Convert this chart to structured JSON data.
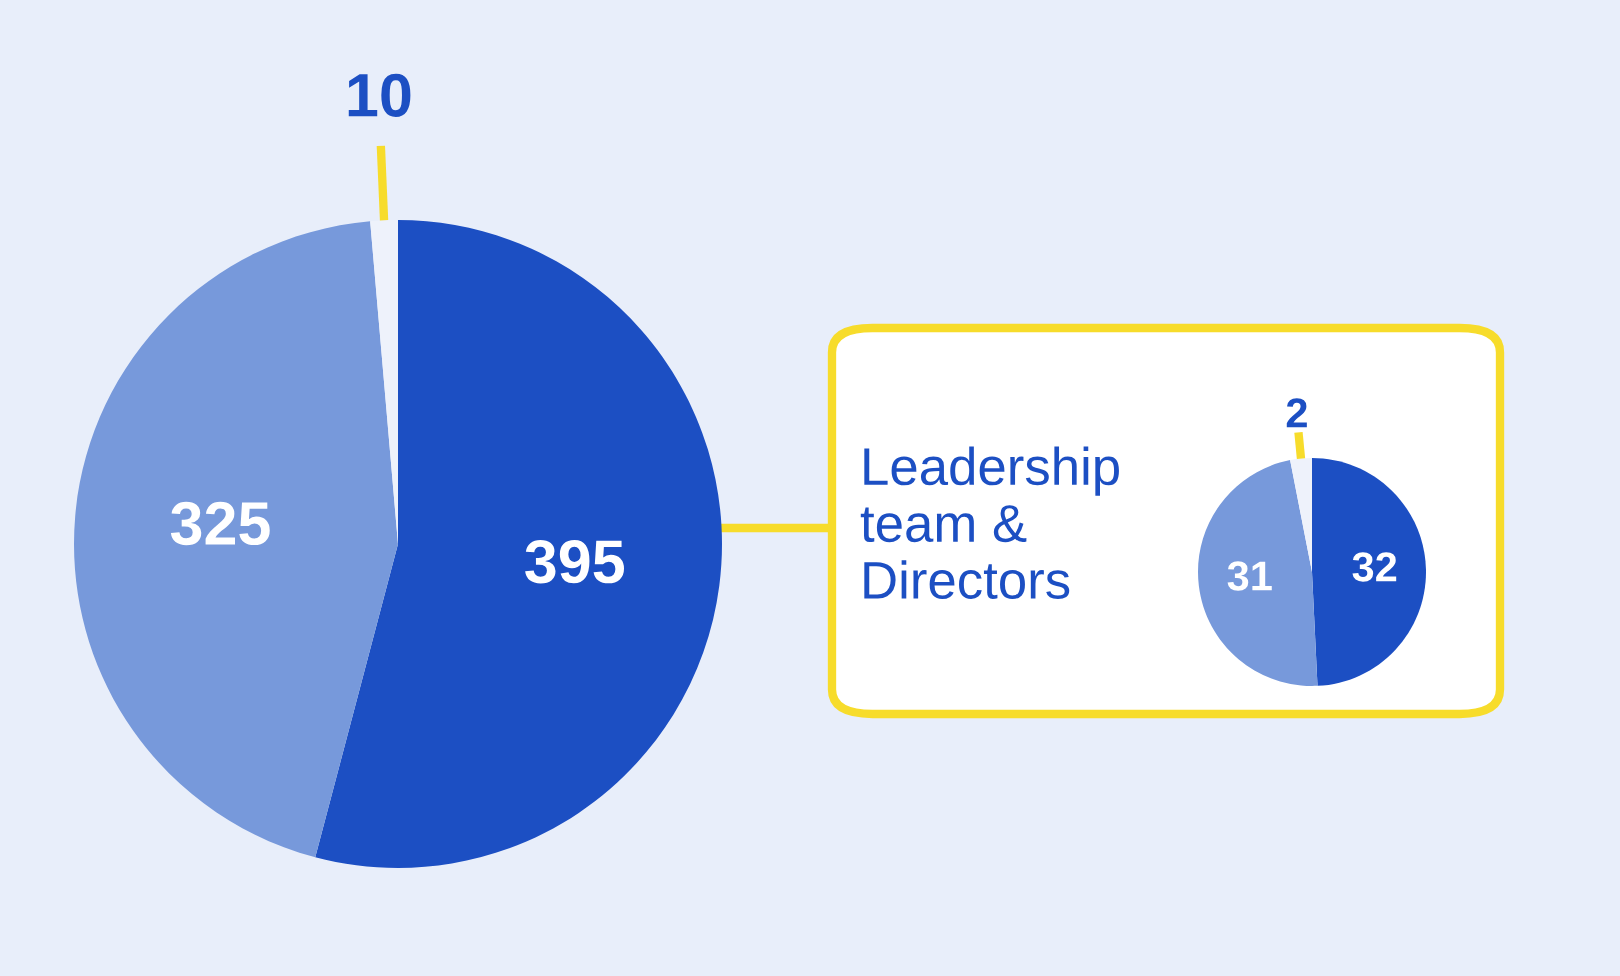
{
  "chart_data": [
    {
      "type": "pie",
      "categories": [
        null,
        null,
        null
      ],
      "values": [
        395,
        325,
        10
      ],
      "colors": [
        "#1c4fc3",
        "#7799db",
        "#eef2fb"
      ],
      "data_labels": true
    },
    {
      "type": "pie",
      "title": "Leadership\nteam &\nDirectors",
      "categories": [
        null,
        null,
        null
      ],
      "values": [
        32,
        31,
        2
      ],
      "colors": [
        "#1c4fc3",
        "#7799db",
        "#eef2fb"
      ],
      "data_labels": true
    }
  ]
}
